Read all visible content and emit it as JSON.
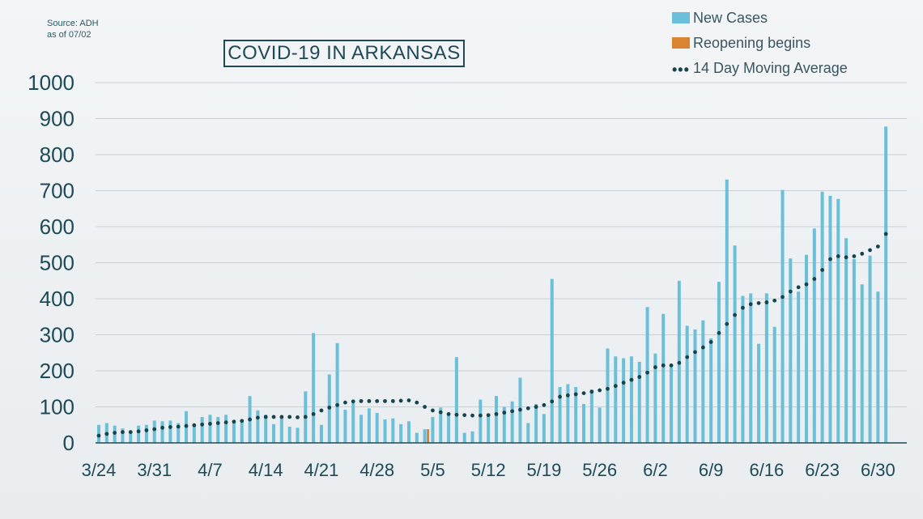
{
  "source": {
    "line1": "Source: ADH",
    "line2": "as of 07/02"
  },
  "title": "COVID-19 IN ARKANSAS",
  "legend": {
    "new_cases": "New Cases",
    "reopening": "Reopening begins",
    "moving_avg": "14 Day Moving Average"
  },
  "colors": {
    "bar": "#6bbfd8",
    "reopening": "#d98431",
    "average": "#16444e",
    "grid": "#c8d0d4",
    "text": "#1e4a57"
  },
  "chart_data": {
    "type": "bar",
    "title": "COVID-19 IN ARKANSAS",
    "xlabel": "",
    "ylabel": "",
    "ylim": [
      0,
      1000
    ],
    "yticks": [
      0,
      100,
      200,
      300,
      400,
      500,
      600,
      700,
      800,
      900,
      1000
    ],
    "xtick_labels": [
      "3/24",
      "3/31",
      "4/7",
      "4/14",
      "4/21",
      "4/28",
      "5/5",
      "5/12",
      "5/19",
      "5/26",
      "6/2",
      "6/9",
      "6/16",
      "6/23",
      "6/30"
    ],
    "xtick_day_index": [
      0,
      7,
      14,
      21,
      28,
      35,
      42,
      49,
      56,
      63,
      70,
      77,
      84,
      91,
      98
    ],
    "start_date": "3/24",
    "grid": true,
    "legend_position": "top-right",
    "reopening_day_index": 41,
    "series": [
      {
        "name": "New Cases",
        "type": "bar",
        "values": [
          50,
          55,
          48,
          40,
          35,
          48,
          50,
          62,
          60,
          62,
          55,
          88,
          50,
          72,
          78,
          72,
          78,
          60,
          58,
          130,
          90,
          78,
          52,
          70,
          45,
          42,
          143,
          305,
          50,
          190,
          277,
          92,
          110,
          78,
          96,
          83,
          65,
          68,
          52,
          60,
          28,
          38,
          72,
          98,
          80,
          238,
          28,
          32,
          120,
          78,
          130,
          100,
          115,
          181,
          55,
          108,
          80,
          455,
          155,
          163,
          155,
          108,
          148,
          98,
          262,
          240,
          235,
          240,
          225,
          377,
          248,
          358,
          210,
          450,
          325,
          315,
          340,
          290,
          447,
          731,
          548,
          408,
          415,
          275,
          415,
          322,
          702,
          512,
          420,
          522,
          595,
          697,
          686,
          677,
          568,
          510,
          440,
          520,
          420,
          878
        ]
      },
      {
        "name": "14 Day Moving Average",
        "type": "line",
        "values": [
          20,
          25,
          28,
          30,
          30,
          32,
          35,
          38,
          42,
          44,
          45,
          47,
          49,
          51,
          53,
          55,
          57,
          59,
          61,
          65,
          70,
          72,
          72,
          72,
          72,
          71,
          72,
          80,
          90,
          98,
          105,
          112,
          115,
          116,
          116,
          116,
          116,
          116,
          117,
          118,
          112,
          100,
          90,
          85,
          80,
          78,
          77,
          76,
          76,
          77,
          80,
          84,
          88,
          92,
          96,
          100,
          105,
          115,
          128,
          132,
          135,
          138,
          142,
          146,
          150,
          158,
          167,
          175,
          183,
          195,
          210,
          215,
          215,
          222,
          238,
          252,
          265,
          280,
          305,
          330,
          355,
          375,
          385,
          388,
          390,
          395,
          405,
          420,
          432,
          440,
          455,
          480,
          510,
          518,
          515,
          518,
          525,
          535,
          545,
          580
        ]
      }
    ]
  }
}
